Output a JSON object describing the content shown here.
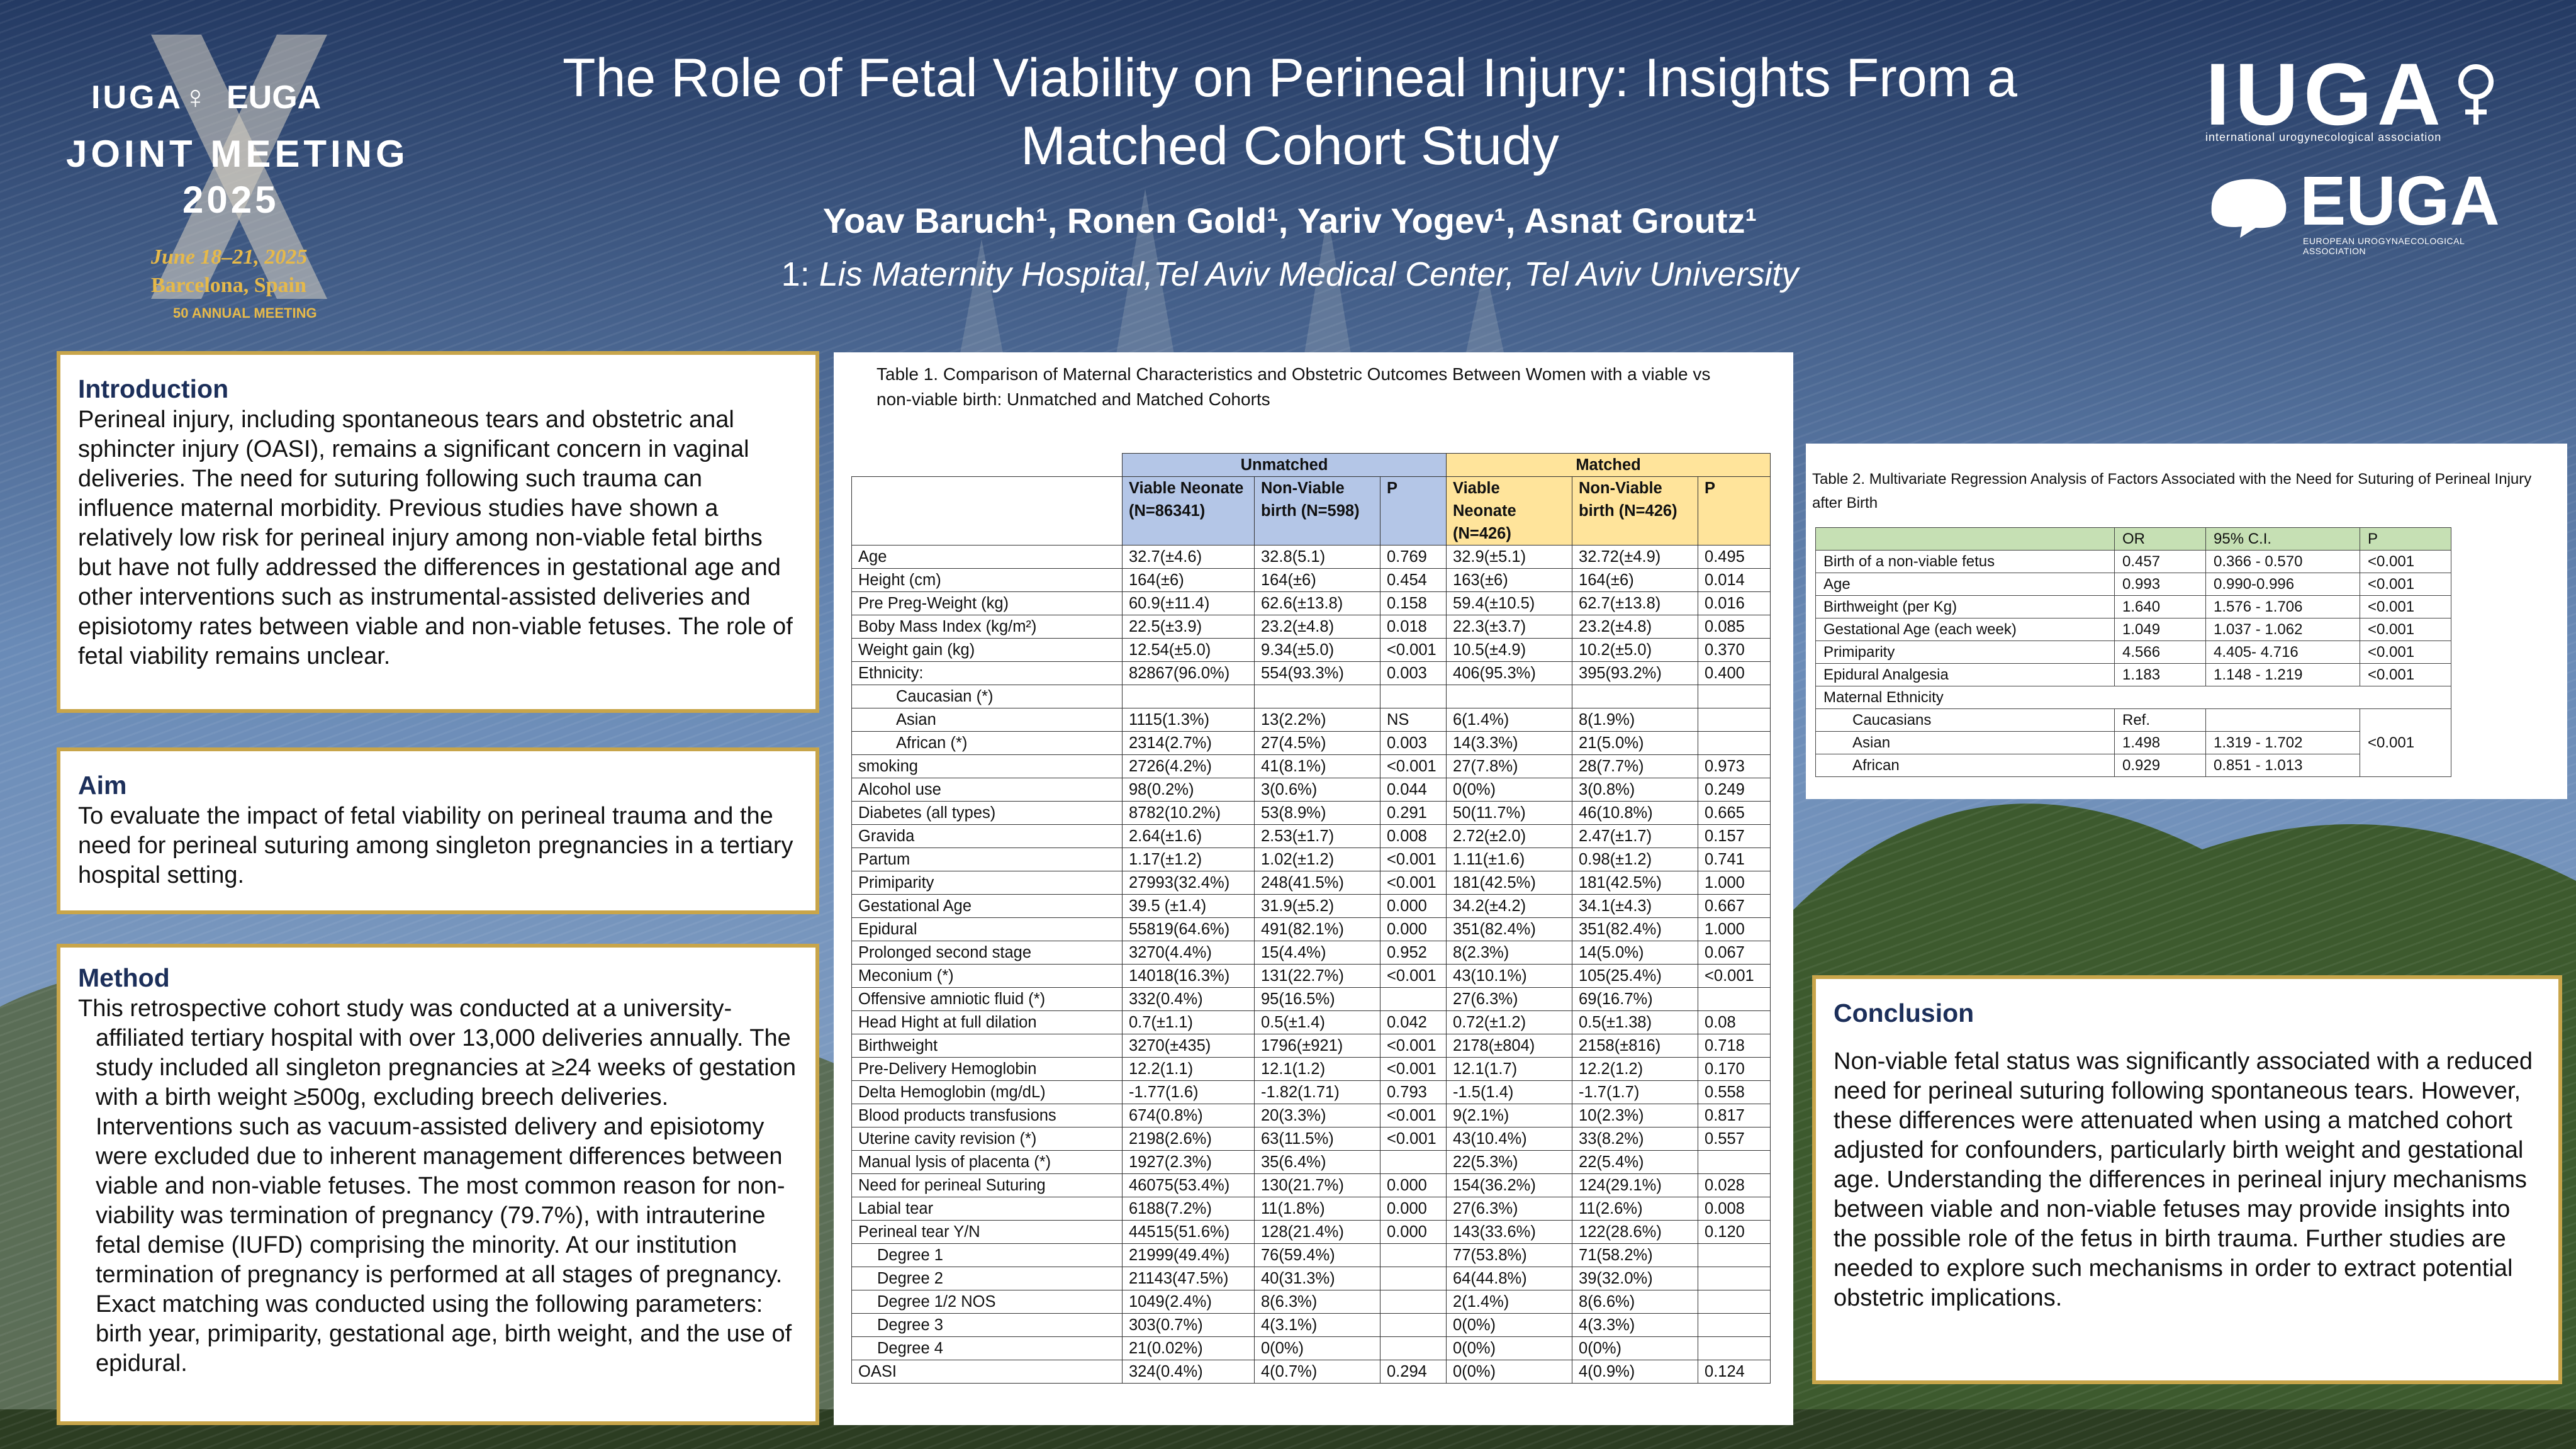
{
  "header": {
    "title": "The Role of Fetal Viability on Perineal Injury: Insights From a Matched Cohort Study",
    "authors": "Yoav Baruch¹, Ronen Gold¹, Yariv Yogev¹, Asnat Groutz¹",
    "affiliation_prefix": "1: ",
    "affiliation": "Lis Maternity Hospital,Tel Aviv Medical Center, Tel Aviv University"
  },
  "logo_left": {
    "iuga": "IUGA♀",
    "euga": "EUGA",
    "joint": "JOINT MEETING",
    "year": "2025",
    "dates": "June 18–21, 2025",
    "city": "Barcelona, Spain",
    "anniversary": "50 ANNUAL MEETING"
  },
  "logo_right": {
    "iuga": "IUGA",
    "iuga_sub": "international urogynecological association",
    "euga": "EUGA",
    "euga_sub": "EUROPEAN UROGYNAECOLOGICAL ASSOCIATION"
  },
  "introduction": {
    "heading": "Introduction",
    "text": "Perineal injury, including spontaneous tears and obstetric anal sphincter injury (OASI), remains a significant concern in vaginal deliveries. The need for suturing following such trauma can influence maternal morbidity. Previous studies have shown a relatively low risk for perineal injury among non-viable fetal births but have not fully addressed the differences in gestational age and other interventions such as instrumental-assisted deliveries and episiotomy rates between viable and non-viable fetuses. The role of fetal viability remains unclear."
  },
  "aim": {
    "heading": "Aim",
    "text": "To evaluate the impact of fetal viability on perineal trauma and the need for perineal suturing among singleton pregnancies in a tertiary hospital setting."
  },
  "method": {
    "heading": "Method",
    "text": "This retrospective cohort study was conducted at a university-affiliated tertiary hospital with over 13,000 deliveries annually. The study included all singleton pregnancies at ≥24 weeks of gestation with a birth weight ≥500g, excluding breech deliveries. Interventions such as vacuum-assisted delivery and episiotomy were excluded due to inherent management differences between viable and non-viable fetuses. The most common reason for non-viability was termination of pregnancy (79.7%), with intrauterine fetal demise (IUFD) comprising the minority.  At our institution termination of pregnancy is performed at all stages of pregnancy. Exact matching was conducted using the following parameters: birth year, primiparity, gestational age, birth weight, and the use of epidural."
  },
  "conclusion": {
    "heading": "Conclusion",
    "text": "Non-viable fetal status was significantly associated with a reduced need for perineal suturing following spontaneous tears. However, these differences were attenuated when using a matched cohort adjusted for confounders, particularly birth weight and gestational age. Understanding the differences in perineal injury mechanisms between viable and non-viable fetuses may provide insights into the possible role of the fetus in birth trauma. Further studies are needed to explore such mechanisms in order to extract potential obstetric implications."
  },
  "table1": {
    "caption": "Table 1. Comparison of Maternal Characteristics and Obstetric Outcomes Between Women with a viable vs non-viable birth: Unmatched and Matched Cohorts",
    "group_unmatched": "Unmatched",
    "group_matched": "Matched",
    "col_viable": "Viable Neonate (N=86341)",
    "col_nonviable": "Non-Viable birth (N=598)",
    "col_p": "P",
    "col_viable_m": "Viable Neonate (N=426)",
    "col_nonviable_m": "Non-Viable birth (N=426)",
    "col_p_m": "P",
    "rows": [
      {
        "label": "Age",
        "v": "32.7(±4.6)",
        "nv": "32.8(5.1)",
        "p": "0.769",
        "mv": "32.9(±5.1)",
        "mnv": "32.72(±4.9)",
        "mp": "0.495"
      },
      {
        "label": "Height (cm)",
        "v": "164(±6)",
        "nv": "164(±6)",
        "p": "0.454",
        "mv": "163(±6)",
        "mnv": "164(±6)",
        "mp": "0.014"
      },
      {
        "label": "Pre Preg-Weight (kg)",
        "v": "60.9(±11.4)",
        "nv": "62.6(±13.8)",
        "p": "0.158",
        "mv": "59.4(±10.5)",
        "mnv": "62.7(±13.8)",
        "mp": "0.016"
      },
      {
        "label": "Boby Mass Index  (kg/m²)",
        "v": "22.5(±3.9)",
        "nv": "23.2(±4.8)",
        "p": "0.018",
        "mv": "22.3(±3.7)",
        "mnv": "23.2(±4.8)",
        "mp": "0.085"
      },
      {
        "label": "Weight gain (kg)",
        "v": "12.54(±5.0)",
        "nv": "9.34(±5.0)",
        "p": "<0.001",
        "mv": "10.5(±4.9)",
        "mnv": "10.2(±5.0)",
        "mp": "0.370"
      },
      {
        "label": "Ethnicity:",
        "v": "82867(96.0%)",
        "nv": "554(93.3%)",
        "p": "0.003",
        "mv": "406(95.3%)",
        "mnv": "395(93.2%)",
        "mp": "0.400"
      },
      {
        "label": "Caucasian (*)",
        "v": "",
        "nv": "",
        "p": "",
        "mv": "",
        "mnv": "",
        "mp": ""
      },
      {
        "label": "Asian",
        "v": "1115(1.3%)",
        "nv": "13(2.2%)",
        "p": "NS",
        "mv": "6(1.4%)",
        "mnv": "8(1.9%)",
        "mp": ""
      },
      {
        "label": "African (*)",
        "v": "2314(2.7%)",
        "nv": "27(4.5%)",
        "p": "0.003",
        "mv": "14(3.3%)",
        "mnv": "21(5.0%)",
        "mp": ""
      },
      {
        "label": "smoking",
        "v": "2726(4.2%)",
        "nv": "41(8.1%)",
        "p": "<0.001",
        "mv": "27(7.8%)",
        "mnv": "28(7.7%)",
        "mp": "0.973"
      },
      {
        "label": "Alcohol use",
        "v": "98(0.2%)",
        "nv": "3(0.6%)",
        "p": "0.044",
        "mv": "0(0%)",
        "mnv": "3(0.8%)",
        "mp": "0.249"
      },
      {
        "label": "Diabetes (all types)",
        "v": "8782(10.2%)",
        "nv": "53(8.9%)",
        "p": "0.291",
        "mv": "50(11.7%)",
        "mnv": "46(10.8%)",
        "mp": "0.665"
      },
      {
        "label": "Gravida",
        "v": "2.64(±1.6)",
        "nv": "2.53(±1.7)",
        "p": "0.008",
        "mv": "2.72(±2.0)",
        "mnv": "2.47(±1.7)",
        "mp": "0.157"
      },
      {
        "label": "Partum",
        "v": "1.17(±1.2)",
        "nv": "1.02(±1.2)",
        "p": "<0.001",
        "mv": "1.11(±1.6)",
        "mnv": "0.98(±1.2)",
        "mp": "0.741"
      },
      {
        "label": "Primiparity",
        "v": "27993(32.4%)",
        "nv": "248(41.5%)",
        "p": "<0.001",
        "mv": "181(42.5%)",
        "mnv": "181(42.5%)",
        "mp": "1.000"
      },
      {
        "label": "Gestational Age",
        "v": "39.5 (±1.4)",
        "nv": "31.9(±5.2)",
        "p": "0.000",
        "mv": "34.2(±4.2)",
        "mnv": "34.1(±4.3)",
        "mp": "0.667"
      },
      {
        "label": "Epidural",
        "v": "55819(64.6%)",
        "nv": "491(82.1%)",
        "p": "0.000",
        "mv": "351(82.4%)",
        "mnv": "351(82.4%)",
        "mp": "1.000"
      },
      {
        "label": "Prolonged second stage",
        "v": "3270(4.4%)",
        "nv": "15(4.4%)",
        "p": "0.952",
        "mv": "8(2.3%)",
        "mnv": "14(5.0%)",
        "mp": "0.067"
      },
      {
        "label": "Meconium (*)",
        "v": "14018(16.3%)",
        "nv": "131(22.7%)",
        "p": "<0.001",
        "mv": "43(10.1%)",
        "mnv": "105(25.4%)",
        "mp": "<0.001"
      },
      {
        "label": "Offensive amniotic fluid (*)",
        "v": "332(0.4%)",
        "nv": "95(16.5%)",
        "p": "",
        "mv": "27(6.3%)",
        "mnv": "69(16.7%)",
        "mp": ""
      },
      {
        "label": "Head Hight at full dilation",
        "v": "0.7(±1.1)",
        "nv": "0.5(±1.4)",
        "p": "0.042",
        "mv": "0.72(±1.2)",
        "mnv": "0.5(±1.38)",
        "mp": "0.08"
      },
      {
        "label": "Birthweight",
        "v": "3270(±435)",
        "nv": "1796(±921)",
        "p": "<0.001",
        "mv": "2178(±804)",
        "mnv": "2158(±816)",
        "mp": "0.718"
      },
      {
        "label": "Pre-Delivery Hemoglobin",
        "v": "12.2(1.1)",
        "nv": "12.1(1.2)",
        "p": "<0.001",
        "mv": "12.1(1.7)",
        "mnv": "12.2(1.2)",
        "mp": "0.170"
      },
      {
        "label": "Delta Hemoglobin (mg/dL)",
        "v": "-1.77(1.6)",
        "nv": "-1.82(1.71)",
        "p": "0.793",
        "mv": "-1.5(1.4)",
        "mnv": "-1.7(1.7)",
        "mp": "0.558"
      },
      {
        "label": "Blood products transfusions",
        "v": "674(0.8%)",
        "nv": "20(3.3%)",
        "p": "<0.001",
        "mv": "9(2.1%)",
        "mnv": "10(2.3%)",
        "mp": "0.817"
      },
      {
        "label": "Uterine cavity revision (*)",
        "v": "2198(2.6%)",
        "nv": "63(11.5%)",
        "p": "<0.001",
        "mv": "43(10.4%)",
        "mnv": "33(8.2%)",
        "mp": "0.557"
      },
      {
        "label": "Manual lysis of placenta (*)",
        "v": "1927(2.3%)",
        "nv": "35(6.4%)",
        "p": "",
        "mv": "22(5.3%)",
        "mnv": "22(5.4%)",
        "mp": ""
      },
      {
        "label": "Need for perineal Suturing",
        "v": "46075(53.4%)",
        "nv": "130(21.7%)",
        "p": "0.000",
        "mv": "154(36.2%)",
        "mnv": "124(29.1%)",
        "mp": "0.028"
      },
      {
        "label": "Labial tear",
        "v": "6188(7.2%)",
        "nv": "11(1.8%)",
        "p": "0.000",
        "mv": "27(6.3%)",
        "mnv": "11(2.6%)",
        "mp": "0.008"
      },
      {
        "label": "Perineal tear Y/N",
        "v": "44515(51.6%)",
        "nv": "128(21.4%)",
        "p": "0.000",
        "mv": "143(33.6%)",
        "mnv": "122(28.6%)",
        "mp": "0.120"
      },
      {
        "label": "Degree 1",
        "v": "21999(49.4%)",
        "nv": "76(59.4%)",
        "p": "",
        "mv": "77(53.8%)",
        "mnv": "71(58.2%)",
        "mp": ""
      },
      {
        "label": "Degree 2",
        "v": "21143(47.5%)",
        "nv": "40(31.3%)",
        "p": "",
        "mv": "64(44.8%)",
        "mnv": "39(32.0%)",
        "mp": ""
      },
      {
        "label": "Degree 1/2 NOS",
        "v": "1049(2.4%)",
        "nv": "8(6.3%)",
        "p": "",
        "mv": "2(1.4%)",
        "mnv": "8(6.6%)",
        "mp": ""
      },
      {
        "label": "Degree 3",
        "v": "303(0.7%)",
        "nv": "4(3.1%)",
        "p": "",
        "mv": "0(0%)",
        "mnv": "4(3.3%)",
        "mp": ""
      },
      {
        "label": "Degree 4",
        "v": "21(0.02%)",
        "nv": "0(0%)",
        "p": "",
        "mv": "0(0%)",
        "mnv": "0(0%)",
        "mp": ""
      },
      {
        "label": "OASI",
        "v": "324(0.4%)",
        "nv": "4(0.7%)",
        "p": "0.294",
        "mv": "0(0%)",
        "mnv": "4(0.9%)",
        "mp": "0.124"
      }
    ]
  },
  "table2": {
    "caption": "Table 2. Multivariate Regression Analysis of Factors Associated with the Need for Suturing of Perineal Injury after Birth",
    "head": {
      "label": "",
      "or": "OR",
      "ci": "95% C.I.",
      "p": "P"
    },
    "rows": [
      {
        "label": "Birth of a non-viable fetus",
        "or": "0.457",
        "ci": "0.366 - 0.570",
        "p": "<0.001"
      },
      {
        "label": "Age",
        "or": "0.993",
        "ci": "0.990-0.996",
        "p": "<0.001"
      },
      {
        "label": "Birthweight (per Kg)",
        "or": "1.640",
        "ci": "1.576 - 1.706",
        "p": "<0.001"
      },
      {
        "label": "Gestational Age (each week)",
        "or": "1.049",
        "ci": "1.037 - 1.062",
        "p": "<0.001"
      },
      {
        "label": "Primiparity",
        "or": "4.566",
        "ci": "4.405- 4.716",
        "p": "<0.001"
      },
      {
        "label": "Epidural Analgesia",
        "or": "1.183",
        "ci": "1.148 - 1.219",
        "p": "<0.001"
      }
    ],
    "ethnicity_label": "Maternal Ethnicity",
    "eth_rows": [
      {
        "label": "Caucasians",
        "or": "Ref.",
        "ci": ""
      },
      {
        "label": "Asian",
        "or": "1.498",
        "ci": "1.319 - 1.702"
      },
      {
        "label": "African",
        "or": "0.929",
        "ci": "0.851 - 1.013"
      }
    ],
    "eth_p": "<0.001"
  }
}
